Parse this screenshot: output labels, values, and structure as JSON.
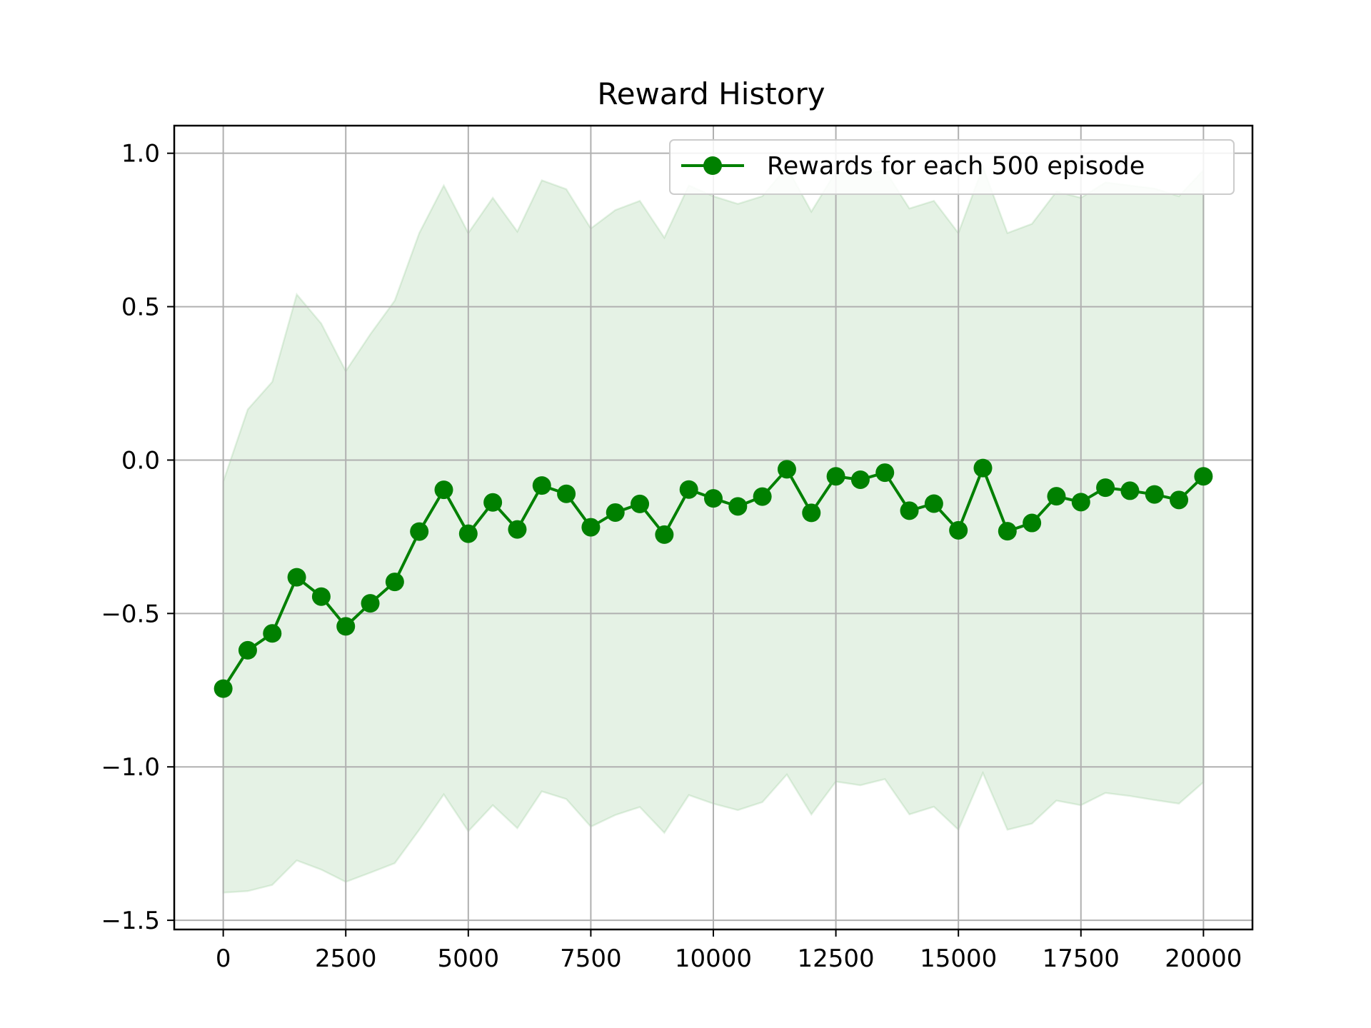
{
  "chart_data": {
    "type": "line",
    "title": "Reward History",
    "xlabel": "",
    "ylabel": "",
    "xlim": [
      -1000,
      21000
    ],
    "ylim": [
      -1.53,
      1.09
    ],
    "grid": true,
    "legend_placement": "top-right",
    "x_ticks": [
      0,
      2500,
      5000,
      7500,
      10000,
      12500,
      15000,
      17500,
      20000
    ],
    "x_tick_labels": [
      "0",
      "2500",
      "5000",
      "7500",
      "10000",
      "12500",
      "15000",
      "17500",
      "20000"
    ],
    "y_ticks": [
      1.0,
      0.5,
      0.0,
      -0.5,
      -1.0,
      -1.5
    ],
    "y_tick_labels": [
      "1.0",
      "0.5",
      "0.0",
      "−0.5",
      "−1.0",
      "−1.5"
    ],
    "colors": {
      "line": "#008000",
      "band": "#008000",
      "grid": "#b0b0b0"
    },
    "x": [
      0,
      500,
      1000,
      1500,
      2000,
      2500,
      3000,
      3500,
      4000,
      4500,
      5000,
      5500,
      6000,
      6500,
      7000,
      7500,
      8000,
      8500,
      9000,
      9500,
      10000,
      10500,
      11000,
      11500,
      12000,
      12500,
      13000,
      13500,
      14000,
      14500,
      15000,
      15500,
      16000,
      16500,
      17000,
      17500,
      18000,
      18500,
      19000,
      19500,
      20000
    ],
    "series": [
      {
        "name": "Rewards for each 500 episode",
        "values": [
          -0.745,
          -0.62,
          -0.565,
          -0.382,
          -0.445,
          -0.542,
          -0.467,
          -0.397,
          -0.233,
          -0.097,
          -0.24,
          -0.138,
          -0.226,
          -0.083,
          -0.11,
          -0.219,
          -0.171,
          -0.143,
          -0.243,
          -0.096,
          -0.125,
          -0.151,
          -0.119,
          -0.03,
          -0.172,
          -0.053,
          -0.064,
          -0.041,
          -0.165,
          -0.142,
          -0.229,
          -0.026,
          -0.232,
          -0.205,
          -0.118,
          -0.137,
          -0.09,
          -0.1,
          -0.112,
          -0.13,
          -0.053
        ],
        "upper": [
          -0.07,
          0.165,
          0.255,
          0.54,
          0.445,
          0.29,
          0.41,
          0.52,
          0.74,
          0.895,
          0.74,
          0.855,
          0.745,
          0.912,
          0.883,
          0.755,
          0.815,
          0.845,
          0.725,
          0.895,
          0.86,
          0.835,
          0.86,
          0.955,
          0.81,
          0.94,
          0.928,
          0.945,
          0.82,
          0.845,
          0.74,
          0.955,
          0.74,
          0.77,
          0.875,
          0.855,
          0.905,
          0.895,
          0.885,
          0.86,
          0.945
        ],
        "lower": [
          -1.41,
          -1.405,
          -1.385,
          -1.305,
          -1.335,
          -1.375,
          -1.345,
          -1.314,
          -1.205,
          -1.09,
          -1.21,
          -1.125,
          -1.2,
          -1.08,
          -1.105,
          -1.195,
          -1.157,
          -1.131,
          -1.215,
          -1.092,
          -1.12,
          -1.141,
          -1.115,
          -1.025,
          -1.155,
          -1.048,
          -1.06,
          -1.04,
          -1.155,
          -1.13,
          -1.205,
          -1.02,
          -1.205,
          -1.185,
          -1.11,
          -1.125,
          -1.085,
          -1.095,
          -1.108,
          -1.12,
          -1.05
        ]
      }
    ]
  }
}
